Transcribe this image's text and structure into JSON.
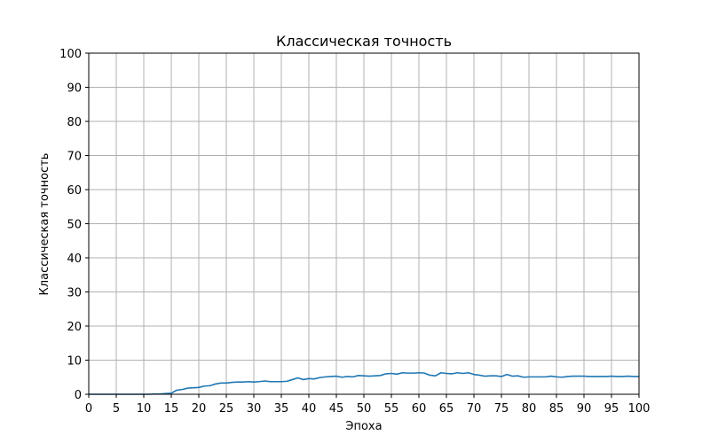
{
  "chart_data": {
    "type": "line",
    "title": "Классическая точность",
    "xlabel": "Эпоха",
    "ylabel": "Классическая точность",
    "xlim": [
      0,
      100
    ],
    "ylim": [
      0,
      100
    ],
    "xticks": [
      0,
      5,
      10,
      15,
      20,
      25,
      30,
      35,
      40,
      45,
      50,
      55,
      60,
      65,
      70,
      75,
      80,
      85,
      90,
      95,
      100
    ],
    "yticks": [
      0,
      10,
      20,
      30,
      40,
      50,
      60,
      70,
      80,
      90,
      100
    ],
    "grid": true,
    "colors": {
      "line": "#1f77b4",
      "grid": "#b0b0b0"
    },
    "series": [
      {
        "x": [
          0,
          1,
          2,
          3,
          4,
          5,
          6,
          7,
          8,
          9,
          10,
          11,
          12,
          13,
          14,
          15,
          16,
          17,
          18,
          19,
          20,
          21,
          22,
          23,
          24,
          25,
          26,
          27,
          28,
          29,
          30,
          31,
          32,
          33,
          34,
          35,
          36,
          37,
          38,
          39,
          40,
          41,
          42,
          43,
          44,
          45,
          46,
          47,
          48,
          49,
          50,
          51,
          52,
          53,
          54,
          55,
          56,
          57,
          58,
          59,
          60,
          61,
          62,
          63,
          64,
          65,
          66,
          67,
          68,
          69,
          70,
          71,
          72,
          73,
          74,
          75,
          76,
          77,
          78,
          79,
          80,
          81,
          82,
          83,
          84,
          85,
          86,
          87,
          88,
          89,
          90,
          91,
          92,
          93,
          94,
          95,
          96,
          97,
          98,
          99,
          100
        ],
        "y": [
          0,
          0,
          0,
          0,
          0,
          0,
          0,
          0,
          0,
          0,
          0,
          0,
          0.1,
          0.1,
          0.2,
          0.3,
          1.2,
          1.4,
          1.8,
          1.9,
          2.0,
          2.4,
          2.5,
          3.0,
          3.3,
          3.3,
          3.5,
          3.6,
          3.6,
          3.7,
          3.6,
          3.7,
          3.9,
          3.7,
          3.7,
          3.7,
          3.8,
          4.3,
          4.8,
          4.3,
          4.6,
          4.5,
          4.9,
          5.1,
          5.2,
          5.3,
          5.0,
          5.2,
          5.1,
          5.5,
          5.4,
          5.3,
          5.4,
          5.5,
          6.0,
          6.1,
          5.9,
          6.3,
          6.2,
          6.2,
          6.3,
          6.2,
          5.6,
          5.4,
          6.3,
          6.1,
          6.0,
          6.3,
          6.1,
          6.3,
          5.8,
          5.6,
          5.3,
          5.4,
          5.4,
          5.2,
          5.8,
          5.3,
          5.4,
          5.0,
          5.1,
          5.1,
          5.1,
          5.1,
          5.3,
          5.1,
          5.0,
          5.2,
          5.3,
          5.3,
          5.3,
          5.2,
          5.2,
          5.2,
          5.2,
          5.3,
          5.2,
          5.2,
          5.3,
          5.2,
          5.2
        ]
      }
    ]
  }
}
